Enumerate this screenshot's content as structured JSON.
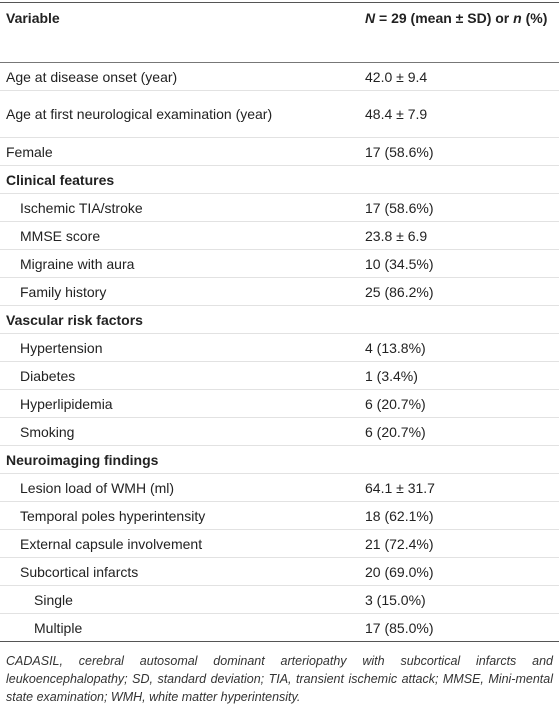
{
  "table": {
    "header": {
      "variable": "Variable",
      "stat": [
        "N",
        " = 29 (mean ± SD) or ",
        "n",
        " (%)"
      ]
    },
    "rows": [
      {
        "label": "Age at disease onset (year)",
        "value": "42.0 ± 9.4"
      },
      {
        "label": "Age at first neurological examination (year)",
        "value": "48.4 ± 7.9"
      },
      {
        "label": "Female",
        "value": "17 (58.6%)"
      }
    ],
    "sections": [
      {
        "heading": "Clinical features",
        "rows": [
          {
            "label": "Ischemic TIA/stroke",
            "value": "17 (58.6%)"
          },
          {
            "label": "MMSE score",
            "value": "23.8 ± 6.9"
          },
          {
            "label": "Migraine with aura",
            "value": "10 (34.5%)"
          },
          {
            "label": "Family history",
            "value": "25 (86.2%)"
          }
        ]
      },
      {
        "heading": "Vascular risk factors",
        "rows": [
          {
            "label": "Hypertension",
            "value": "4 (13.8%)"
          },
          {
            "label": "Diabetes",
            "value": "1 (3.4%)"
          },
          {
            "label": "Hyperlipidemia",
            "value": "6 (20.7%)"
          },
          {
            "label": "Smoking",
            "value": "6 (20.7%)"
          }
        ]
      },
      {
        "heading": "Neuroimaging findings",
        "rows": [
          {
            "label": "Lesion load of WMH (ml)",
            "value": "64.1 ± 31.7"
          },
          {
            "label": "Temporal poles hyperintensity",
            "value": "18 (62.1%)"
          },
          {
            "label": "External capsule involvement",
            "value": "21 (72.4%)"
          },
          {
            "label": "Subcortical infarcts",
            "value": "20 (69.0%)",
            "rows": [
              {
                "label": "Single",
                "value": "3 (15.0%)"
              },
              {
                "label": "Multiple",
                "value": "17 (85.0%)"
              }
            ]
          }
        ]
      }
    ]
  },
  "footnote": "CADASIL, cerebral autosomal dominant arteriopathy with subcortical infarcts and leukoencephalopathy; SD, standard deviation; TIA, transient ischemic attack; MMSE, Mini-mental state examination; WMH, white matter hyperintensity."
}
